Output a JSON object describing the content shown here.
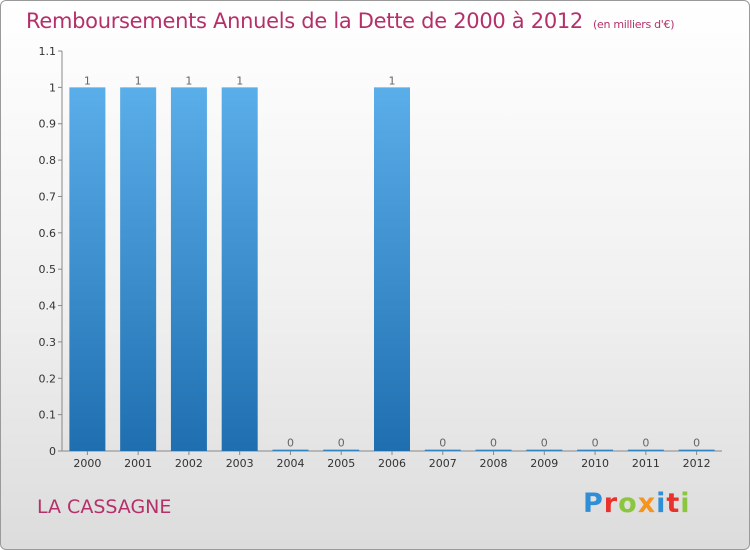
{
  "chart_data": {
    "type": "bar",
    "title": "Remboursements Annuels de la Dette de 2000 à 2012",
    "unit": "(en milliers d'€)",
    "categories": [
      "2000",
      "2001",
      "2002",
      "2003",
      "2004",
      "2005",
      "2006",
      "2007",
      "2008",
      "2009",
      "2010",
      "2011",
      "2012"
    ],
    "values": [
      1,
      1,
      1,
      1,
      0,
      0,
      1,
      0,
      0,
      0,
      0,
      0,
      0
    ],
    "value_labels": [
      "1",
      "1",
      "1",
      "1",
      "0",
      "0",
      "1",
      "0",
      "0",
      "0",
      "0",
      "0",
      "0"
    ],
    "ylim": [
      0,
      1.1
    ],
    "yticks": [
      0,
      0.1,
      0.2,
      0.3,
      0.4,
      0.5,
      0.6,
      0.7,
      0.8,
      0.9,
      1,
      1.1
    ],
    "ytick_labels": [
      "0",
      "0.1",
      "0.2",
      "0.3",
      "0.4",
      "0.5",
      "0.6",
      "0.7",
      "0.8",
      "0.9",
      "1",
      "1.1"
    ],
    "grid": false,
    "bar_color": "#4a9fe0",
    "xlabel": "",
    "ylabel": ""
  },
  "commune": "LA CASSAGNE",
  "logo": {
    "letters": [
      "P",
      "r",
      "o",
      "x",
      "i",
      "t",
      "i"
    ]
  }
}
